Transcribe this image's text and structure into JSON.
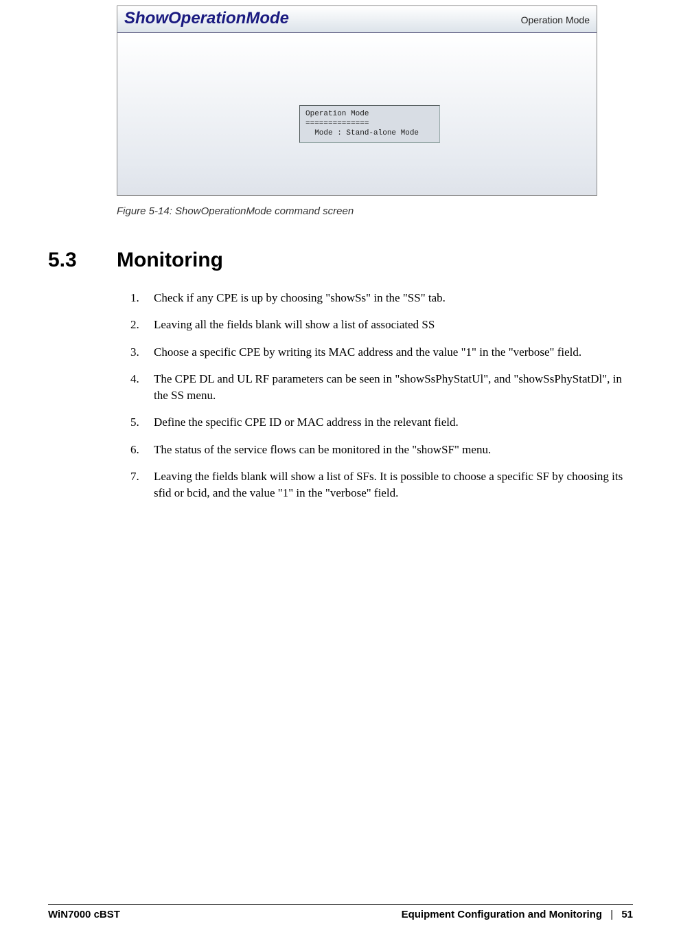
{
  "figure": {
    "window_title": "ShowOperationMode",
    "window_subtitle": "Operation Mode",
    "terminal_text": "Operation Mode\n==============\n  Mode : Stand-alone Mode",
    "caption": "Figure 5-14: ShowOperationMode command screen",
    "title_color": "#1a1a80",
    "body_bg_top": "#ffffff",
    "body_bg_bottom": "#dfe3ea",
    "terminal_bg": "#d8dde4"
  },
  "section": {
    "number": "5.3",
    "title": "Monitoring"
  },
  "steps": [
    "Check if any CPE is up by choosing \"showSs\" in the \"SS\" tab.",
    "Leaving all the fields blank will show a list of associated SS",
    "Choose a specific CPE by writing its MAC address and the value \"1\" in the \"verbose\" field.",
    "The CPE DL and UL RF parameters can be seen in \"showSsPhyStatUl\", and \"showSsPhyStatDl\", in the SS menu.",
    "Define the specific CPE ID or MAC address in the relevant field.",
    "The status of the service flows can be monitored in the \"showSF\" menu.",
    "Leaving the fields blank will show a list of SFs. It is possible to choose a specific SF by choosing its sfid or bcid, and the value \"1\" in the \"verbose\" field."
  ],
  "footer": {
    "left": "WiN7000 cBST",
    "right_title": "Equipment Configuration and Monitoring",
    "page": "51"
  }
}
